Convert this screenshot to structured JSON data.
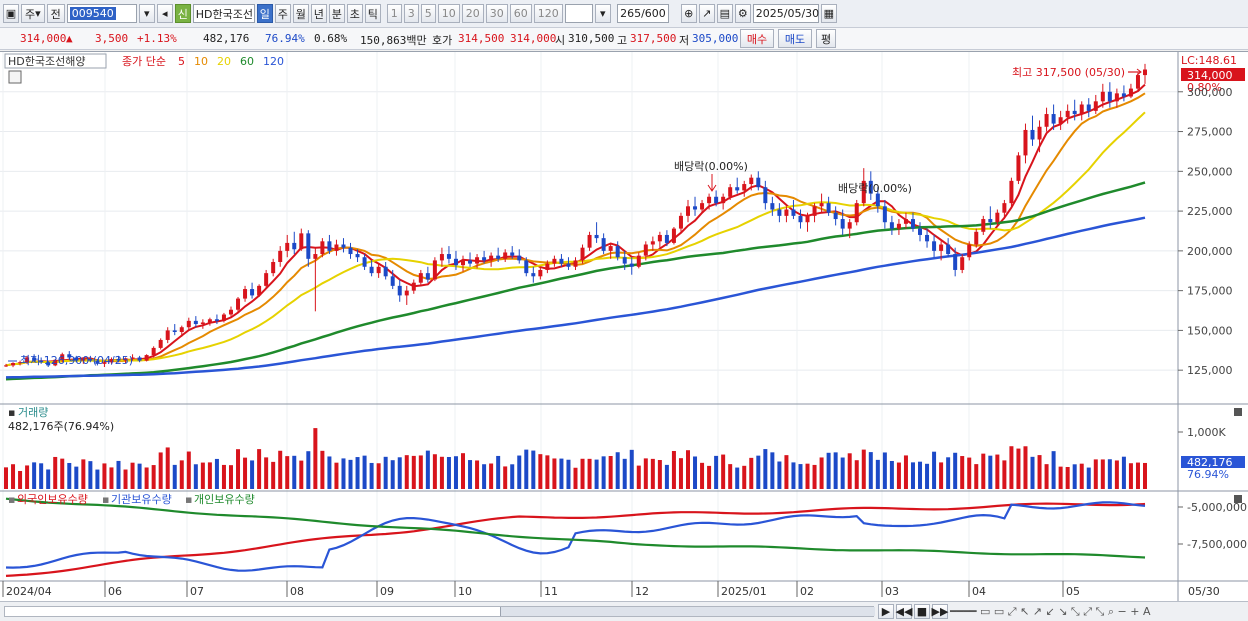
{
  "toolbar": {
    "period_opt": "주",
    "prev_label": "전",
    "code": "009540",
    "new_badge": "신",
    "name": "HD한국조선",
    "period_tabs": [
      "일",
      "주",
      "월",
      "년",
      "분",
      "초",
      "틱"
    ],
    "active_tab": "일",
    "minute_opts": [
      "1",
      "3",
      "5",
      "10",
      "20",
      "30",
      "60",
      "120"
    ],
    "count": "265",
    "count_total": "/600",
    "date": "2025/05/30"
  },
  "quote": {
    "price": "314,000",
    "arrow": "▲",
    "change": "3,500",
    "change_pct": "+1.13%",
    "volume": "482,176",
    "vol_ratio": "76.94%",
    "turnover": "0.68%",
    "amount": "150,863백만",
    "bid_label": "호가",
    "bid": "314,500",
    "ask": "314,000",
    "open_label": "시",
    "open": "310,500",
    "high_label": "고",
    "high": "317,500",
    "low_label": "저",
    "low": "305,000",
    "buy_btn": "매수",
    "sell_btn": "매도",
    "eval_btn": "평"
  },
  "price_panel": {
    "stock_label": "HD한국조선해양",
    "ma_label": "종가 단순",
    "ma_periods": [
      {
        "p": "5",
        "c": "#d8141c"
      },
      {
        "p": "10",
        "c": "#e58a00"
      },
      {
        "p": "20",
        "c": "#e6d200"
      },
      {
        "p": "60",
        "c": "#1f8a2c"
      },
      {
        "p": "120",
        "c": "#2a55d6"
      }
    ],
    "lc_label": "LC:148.61",
    "cur_tag": "314,000",
    "cur_pct": "0.80%",
    "y_ticks": [
      "300,000",
      "275,000",
      "250,000",
      "225,000",
      "200,000",
      "175,000",
      "150,000",
      "125,000"
    ],
    "high_note": "최고 317,500 (05/30)",
    "low_note": "최저 126,900 (04/25)",
    "dividend_1": "배당락(0.00%)",
    "dividend_2": "배당락(0.00%)"
  },
  "volume_panel": {
    "title": "거래량",
    "value": "482,176주(76.94%)",
    "y_tick": "1,000K",
    "tag": "482,176",
    "tag_pct": "76.94%"
  },
  "holding_panel": {
    "legend": [
      {
        "label": "외국인보유수량",
        "c": "#d8141c"
      },
      {
        "label": "기관보유수량",
        "c": "#2a55d6"
      },
      {
        "label": "개인보유수량",
        "c": "#1f8a2c"
      }
    ],
    "y_ticks": [
      "-5,000,000",
      "-7,500,000"
    ]
  },
  "x_axis": [
    "2024/04",
    "06",
    "07",
    "08",
    "09",
    "10",
    "11",
    "12",
    "2025/01",
    "02",
    "03",
    "04",
    "05",
    "05/30"
  ],
  "colors": {
    "up": "#d8141c",
    "down": "#1c49c7"
  },
  "chart_data": {
    "type": "candlestick",
    "y_range": [
      105000,
      325000
    ],
    "ma_periods": [
      5,
      10,
      20,
      60,
      120
    ],
    "candles_ohlc": [
      [
        127500,
        129000,
        127000,
        128000
      ],
      [
        128000,
        130000,
        126900,
        129500
      ],
      [
        129500,
        131000,
        128000,
        130000
      ],
      [
        130000,
        134000,
        129000,
        133000
      ],
      [
        133000,
        135000,
        130000,
        131000
      ],
      [
        131000,
        133000,
        129000,
        130000
      ],
      [
        130000,
        131000,
        127000,
        128000
      ],
      [
        128000,
        132000,
        127500,
        131500
      ],
      [
        131500,
        136000,
        130000,
        135000
      ],
      [
        135000,
        137000,
        132000,
        133000
      ],
      [
        133000,
        134000,
        130000,
        131000
      ],
      [
        131000,
        133000,
        129000,
        132000
      ],
      [
        132000,
        134000,
        130000,
        131000
      ],
      [
        131000,
        132000,
        128000,
        129000
      ],
      [
        129000,
        131000,
        127000,
        130000
      ],
      [
        130000,
        133000,
        129000,
        132000
      ],
      [
        132000,
        134000,
        130000,
        131000
      ],
      [
        131000,
        133000,
        129500,
        132500
      ],
      [
        132500,
        135000,
        131000,
        133000
      ],
      [
        133000,
        134000,
        130000,
        131000
      ],
      [
        131000,
        135000,
        130500,
        134500
      ],
      [
        134500,
        140000,
        133000,
        139000
      ],
      [
        139000,
        145000,
        138000,
        144000
      ],
      [
        144000,
        152000,
        142000,
        150000
      ],
      [
        150000,
        154000,
        147000,
        149000
      ],
      [
        149000,
        153000,
        146000,
        152000
      ],
      [
        152000,
        158000,
        150000,
        156000
      ],
      [
        156000,
        159000,
        152000,
        154000
      ],
      [
        154000,
        157000,
        151000,
        155000
      ],
      [
        155000,
        158000,
        153000,
        157000
      ],
      [
        157000,
        160000,
        154000,
        156000
      ],
      [
        156000,
        161000,
        155000,
        160000
      ],
      [
        160000,
        165000,
        158000,
        163000
      ],
      [
        163000,
        171000,
        161000,
        170000
      ],
      [
        170000,
        178000,
        168000,
        176000
      ],
      [
        176000,
        180000,
        170000,
        172000
      ],
      [
        172000,
        179000,
        171000,
        178000
      ],
      [
        178000,
        188000,
        176000,
        186000
      ],
      [
        186000,
        195000,
        184000,
        193000
      ],
      [
        193000,
        203000,
        190000,
        200000
      ],
      [
        200000,
        210000,
        196000,
        205000
      ],
      [
        205000,
        212000,
        198000,
        201000
      ],
      [
        201000,
        214000,
        200000,
        211000
      ],
      [
        211000,
        213000,
        190000,
        195000
      ],
      [
        195000,
        202000,
        162000,
        198000
      ],
      [
        198000,
        208000,
        196000,
        206000
      ],
      [
        206000,
        210000,
        198000,
        200000
      ],
      [
        200000,
        207000,
        197000,
        204000
      ],
      [
        204000,
        208000,
        199000,
        202000
      ],
      [
        202000,
        205000,
        195000,
        198000
      ],
      [
        198000,
        201000,
        193000,
        196000
      ],
      [
        196000,
        198000,
        188000,
        190000
      ],
      [
        190000,
        194000,
        184000,
        186000
      ],
      [
        186000,
        192000,
        183000,
        190000
      ],
      [
        190000,
        193000,
        182000,
        184000
      ],
      [
        184000,
        188000,
        176000,
        178000
      ],
      [
        178000,
        182000,
        168000,
        172000
      ],
      [
        172000,
        178000,
        166000,
        175000
      ],
      [
        175000,
        182000,
        173000,
        180000
      ],
      [
        180000,
        188000,
        178000,
        186000
      ],
      [
        186000,
        190000,
        180000,
        182000
      ],
      [
        182000,
        196000,
        181000,
        194000
      ],
      [
        194000,
        202000,
        190000,
        198000
      ],
      [
        198000,
        203000,
        192000,
        195000
      ],
      [
        195000,
        200000,
        188000,
        191000
      ],
      [
        191000,
        197000,
        187000,
        194000
      ],
      [
        194000,
        199000,
        190000,
        192000
      ],
      [
        192000,
        198000,
        189000,
        196000
      ],
      [
        196000,
        200000,
        192000,
        194000
      ],
      [
        194000,
        199000,
        190000,
        197000
      ],
      [
        197000,
        202000,
        193000,
        195000
      ],
      [
        195000,
        201000,
        193000,
        199000
      ],
      [
        199000,
        203000,
        195000,
        197000
      ],
      [
        197000,
        201000,
        192000,
        194000
      ],
      [
        194000,
        196000,
        184000,
        186000
      ],
      [
        186000,
        190000,
        180000,
        184000
      ],
      [
        184000,
        190000,
        182000,
        188000
      ],
      [
        188000,
        194000,
        186000,
        192000
      ],
      [
        192000,
        197000,
        190000,
        195000
      ],
      [
        195000,
        198000,
        190000,
        192000
      ],
      [
        192000,
        196000,
        188000,
        190000
      ],
      [
        190000,
        196000,
        188000,
        194000
      ],
      [
        194000,
        204000,
        192000,
        202000
      ],
      [
        202000,
        212000,
        200000,
        210000
      ],
      [
        210000,
        218000,
        205000,
        208000
      ],
      [
        208000,
        211000,
        198000,
        200000
      ],
      [
        200000,
        205000,
        195000,
        203000
      ],
      [
        203000,
        206000,
        194000,
        196000
      ],
      [
        196000,
        200000,
        188000,
        192000
      ],
      [
        192000,
        196000,
        185000,
        190000
      ],
      [
        190000,
        199000,
        189000,
        197000
      ],
      [
        197000,
        206000,
        194000,
        204000
      ],
      [
        204000,
        209000,
        200000,
        206000
      ],
      [
        206000,
        212000,
        202000,
        210000
      ],
      [
        210000,
        213000,
        203000,
        205000
      ],
      [
        205000,
        215000,
        204000,
        214000
      ],
      [
        214000,
        224000,
        212000,
        222000
      ],
      [
        222000,
        232000,
        218000,
        228000
      ],
      [
        228000,
        234000,
        222000,
        226000
      ],
      [
        226000,
        232000,
        224000,
        230000
      ],
      [
        230000,
        236000,
        226000,
        234000
      ],
      [
        234000,
        238000,
        228000,
        230000
      ],
      [
        230000,
        236000,
        226000,
        234000
      ],
      [
        234000,
        242000,
        232000,
        240000
      ],
      [
        240000,
        246000,
        236000,
        238000
      ],
      [
        238000,
        244000,
        234000,
        242000
      ],
      [
        242000,
        248000,
        238000,
        246000
      ],
      [
        246000,
        250000,
        238000,
        240000
      ],
      [
        240000,
        244000,
        226000,
        230000
      ],
      [
        230000,
        234000,
        222000,
        226000
      ],
      [
        226000,
        230000,
        218000,
        222000
      ],
      [
        222000,
        228000,
        218000,
        226000
      ],
      [
        226000,
        232000,
        220000,
        222000
      ],
      [
        222000,
        226000,
        214000,
        218000
      ],
      [
        218000,
        224000,
        212000,
        222000
      ],
      [
        222000,
        230000,
        218000,
        228000
      ],
      [
        228000,
        236000,
        224000,
        230000
      ],
      [
        230000,
        234000,
        222000,
        224000
      ],
      [
        224000,
        228000,
        216000,
        220000
      ],
      [
        220000,
        226000,
        210000,
        214000
      ],
      [
        214000,
        220000,
        208000,
        218000
      ],
      [
        218000,
        232000,
        216000,
        230000
      ],
      [
        230000,
        252000,
        228000,
        244000
      ],
      [
        244000,
        250000,
        232000,
        236000
      ],
      [
        236000,
        240000,
        224000,
        228000
      ],
      [
        228000,
        232000,
        214000,
        218000
      ],
      [
        218000,
        222000,
        210000,
        214000
      ],
      [
        214000,
        220000,
        210000,
        217000
      ],
      [
        217000,
        224000,
        214000,
        220000
      ],
      [
        220000,
        224000,
        212000,
        214000
      ],
      [
        214000,
        218000,
        206000,
        210000
      ],
      [
        210000,
        214000,
        202000,
        206000
      ],
      [
        206000,
        210000,
        196000,
        200000
      ],
      [
        200000,
        206000,
        194000,
        204000
      ],
      [
        204000,
        208000,
        196000,
        198000
      ],
      [
        198000,
        202000,
        184000,
        188000
      ],
      [
        188000,
        198000,
        186000,
        196000
      ],
      [
        196000,
        206000,
        194000,
        204000
      ],
      [
        204000,
        214000,
        202000,
        212000
      ],
      [
        212000,
        222000,
        210000,
        220000
      ],
      [
        220000,
        228000,
        214000,
        218000
      ],
      [
        218000,
        226000,
        216000,
        224000
      ],
      [
        224000,
        232000,
        220000,
        230000
      ],
      [
        230000,
        246000,
        228000,
        244000
      ],
      [
        244000,
        262000,
        242000,
        260000
      ],
      [
        260000,
        280000,
        255000,
        276000
      ],
      [
        276000,
        285000,
        266000,
        270000
      ],
      [
        270000,
        282000,
        262000,
        278000
      ],
      [
        278000,
        290000,
        275000,
        286000
      ],
      [
        286000,
        292000,
        276000,
        280000
      ],
      [
        280000,
        288000,
        276000,
        284000
      ],
      [
        284000,
        292000,
        280000,
        288000
      ],
      [
        288000,
        295000,
        282000,
        286000
      ],
      [
        286000,
        294000,
        282000,
        292000
      ],
      [
        292000,
        296000,
        284000,
        288000
      ],
      [
        288000,
        298000,
        286000,
        294000
      ],
      [
        294000,
        305000,
        290000,
        300000
      ],
      [
        300000,
        306000,
        290000,
        294000
      ],
      [
        294000,
        302000,
        290000,
        299000
      ],
      [
        299000,
        304000,
        294000,
        297000
      ],
      [
        297000,
        305000,
        296000,
        302000
      ],
      [
        302000,
        312000,
        300000,
        310500
      ],
      [
        310500,
        317500,
        305000,
        314000
      ]
    ],
    "volume_note": "daily volume bars, latest 482,176"
  }
}
